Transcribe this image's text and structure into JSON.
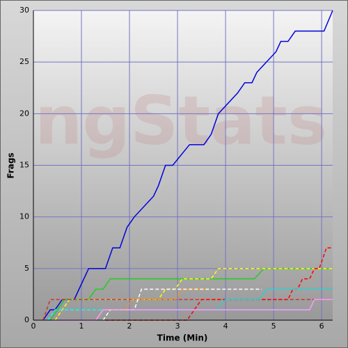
{
  "chart_data": {
    "type": "line",
    "watermark": "ngStats",
    "x_label": "Time (Min)",
    "y_label": "Frags",
    "xlim": [
      0,
      6.23
    ],
    "xticks": [
      0,
      1,
      2,
      3,
      4,
      5,
      6
    ],
    "ylim": [
      0,
      30
    ],
    "yticks": [
      0,
      5,
      10,
      15,
      20,
      25,
      30
    ],
    "grid": true,
    "grid_color": "#7373c4",
    "series": [
      {
        "color": "#0000dd",
        "dashed": false,
        "x": [
          0.2,
          0.35,
          0.45,
          0.6,
          0.85,
          0.95,
          1.15,
          1.5,
          1.65,
          1.8,
          1.95,
          2.1,
          2.5,
          2.6,
          2.75,
          2.9,
          3.25,
          3.55,
          3.7,
          3.85,
          4.25,
          4.4,
          4.55,
          4.65,
          5.05,
          5.15,
          5.3,
          5.45,
          6.05,
          6.23
        ],
        "values": [
          0,
          1,
          1,
          2,
          2,
          3,
          5,
          5,
          7,
          7,
          9,
          10,
          12,
          13,
          15,
          15,
          17,
          17,
          18,
          20,
          22,
          23,
          23,
          24,
          26,
          27,
          27,
          28,
          28,
          30
        ]
      },
      {
        "color": "#22cc22",
        "dashed": false,
        "x": [
          0.35,
          0.65,
          1.15,
          1.3,
          1.45,
          1.6,
          4.6,
          4.8,
          6.23
        ],
        "values": [
          0,
          2,
          2,
          3,
          3,
          4,
          4,
          5,
          5
        ]
      },
      {
        "color": "#ffff00",
        "dashed": true,
        "x": [
          0.45,
          0.75,
          2.6,
          2.75,
          2.95,
          3.1,
          3.7,
          3.85,
          6.23
        ],
        "values": [
          0,
          2,
          2,
          3,
          3,
          4,
          4,
          5,
          5
        ]
      },
      {
        "color": "#cc3333",
        "dashed": true,
        "x": [
          0.2,
          0.35,
          6.23
        ],
        "values": [
          0,
          2,
          2
        ]
      },
      {
        "color": "#ff0000",
        "dashed": true,
        "x": [
          1.5,
          3.2,
          3.35,
          3.5,
          5.3,
          5.4,
          5.5,
          5.6,
          5.75,
          5.85,
          5.95,
          6.1,
          6.23
        ],
        "values": [
          0,
          0,
          1,
          2,
          2,
          3,
          3,
          4,
          4,
          5,
          5,
          7,
          7
        ]
      },
      {
        "color": "#33cccc",
        "dashed": false,
        "x": [
          3.8,
          4.0,
          4.7,
          4.85,
          6.23
        ],
        "values": [
          1,
          2,
          2,
          3,
          3
        ]
      },
      {
        "color": "#00ffff",
        "dashed": true,
        "x": [
          0.3,
          0.45,
          5.7
        ],
        "values": [
          0,
          1,
          1
        ]
      },
      {
        "color": "#ff9900",
        "dashed": true,
        "x": [
          1.3,
          1.45,
          1.9,
          2.05,
          2.95,
          3.1,
          3.6
        ],
        "values": [
          0,
          1,
          1,
          2,
          2,
          3,
          3
        ]
      },
      {
        "color": "#ffffff",
        "dashed": true,
        "x": [
          1.45,
          1.6,
          2.1,
          2.25,
          4.75
        ],
        "values": [
          0,
          1,
          1,
          3,
          3
        ]
      },
      {
        "color": "#ff99ff",
        "dashed": false,
        "x": [
          0.4,
          1.3,
          1.45,
          5.75,
          5.85,
          6.23
        ],
        "values": [
          0,
          0,
          1,
          1,
          2,
          2
        ]
      }
    ]
  }
}
